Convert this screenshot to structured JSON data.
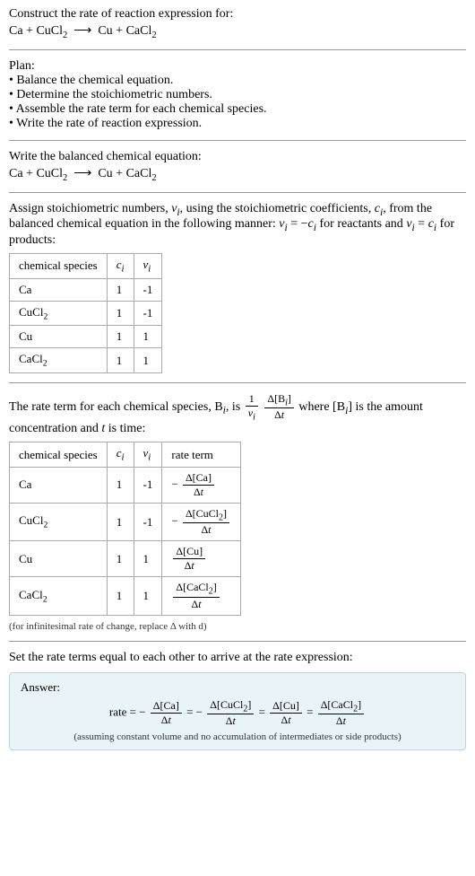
{
  "prompt": {
    "title": "Construct the rate of reaction expression for:",
    "equation_html": "Ca + CuCl<sub class=\"sub\">2</sub>&nbsp;&nbsp;&#10230;&nbsp;&nbsp;Cu + CaCl<sub class=\"sub\">2</sub>"
  },
  "plan": {
    "title": "Plan:",
    "items": [
      "Balance the chemical equation.",
      "Determine the stoichiometric numbers.",
      "Assemble the rate term for each chemical species.",
      "Write the rate of reaction expression."
    ]
  },
  "balanced": {
    "title": "Write the balanced chemical equation:",
    "equation_html": "Ca + CuCl<sub class=\"sub\">2</sub>&nbsp;&nbsp;&#10230;&nbsp;&nbsp;Cu + CaCl<sub class=\"sub\">2</sub>"
  },
  "stoich": {
    "intro_html": "Assign stoichiometric numbers, <i>ν<sub>i</sub></i>, using the stoichiometric coefficients, <i>c<sub>i</sub></i>, from the balanced chemical equation in the following manner: <i>ν<sub>i</sub></i> = −<i>c<sub>i</sub></i> for reactants and <i>ν<sub>i</sub></i> = <i>c<sub>i</sub></i> for products:",
    "headers": [
      "chemical species",
      "c_i",
      "ν_i"
    ],
    "rows": [
      {
        "species_html": "Ca",
        "c": "1",
        "v": "-1"
      },
      {
        "species_html": "CuCl<sub class=\"sub\">2</sub>",
        "c": "1",
        "v": "-1"
      },
      {
        "species_html": "Cu",
        "c": "1",
        "v": "1"
      },
      {
        "species_html": "CaCl<sub class=\"sub\">2</sub>",
        "c": "1",
        "v": "1"
      }
    ]
  },
  "rateterm": {
    "intro_pre": "The rate term for each chemical species, B",
    "intro_mid": ", is ",
    "intro_post_html": " where [B<sub><i>i</i></sub>] is the amount concentration and <i>t</i> is time:",
    "headers": [
      "chemical species",
      "c_i",
      "ν_i",
      "rate term"
    ],
    "rows": [
      {
        "species_html": "Ca",
        "c": "1",
        "v": "-1",
        "term_num": "Δ[Ca]",
        "term_den": "Δ<i>t</i>",
        "neg": true
      },
      {
        "species_html": "CuCl<sub class=\"sub\">2</sub>",
        "c": "1",
        "v": "-1",
        "term_num": "Δ[CuCl<sub>2</sub>]",
        "term_den": "Δ<i>t</i>",
        "neg": true
      },
      {
        "species_html": "Cu",
        "c": "1",
        "v": "1",
        "term_num": "Δ[Cu]",
        "term_den": "Δ<i>t</i>",
        "neg": false
      },
      {
        "species_html": "CaCl<sub class=\"sub\">2</sub>",
        "c": "1",
        "v": "1",
        "term_num": "Δ[CaCl<sub>2</sub>]",
        "term_den": "Δ<i>t</i>",
        "neg": false
      }
    ],
    "footnote": "(for infinitesimal rate of change, replace Δ with d)"
  },
  "final": {
    "title": "Set the rate terms equal to each other to arrive at the rate expression:",
    "answer_label": "Answer:",
    "rate_prefix": "rate = ",
    "terms": [
      {
        "num": "Δ[Ca]",
        "den": "Δ<i>t</i>",
        "neg": true
      },
      {
        "num": "Δ[CuCl<sub>2</sub>]",
        "den": "Δ<i>t</i>",
        "neg": true
      },
      {
        "num": "Δ[Cu]",
        "den": "Δ<i>t</i>",
        "neg": false
      },
      {
        "num": "Δ[CaCl<sub>2</sub>]",
        "den": "Δ<i>t</i>",
        "neg": false
      }
    ],
    "note": "(assuming constant volume and no accumulation of intermediates or side products)"
  },
  "colors": {
    "hr": "#999999",
    "table_border": "#aaaaaa",
    "answer_bg": "#e8f4f8",
    "answer_border": "#b8d8e0"
  }
}
